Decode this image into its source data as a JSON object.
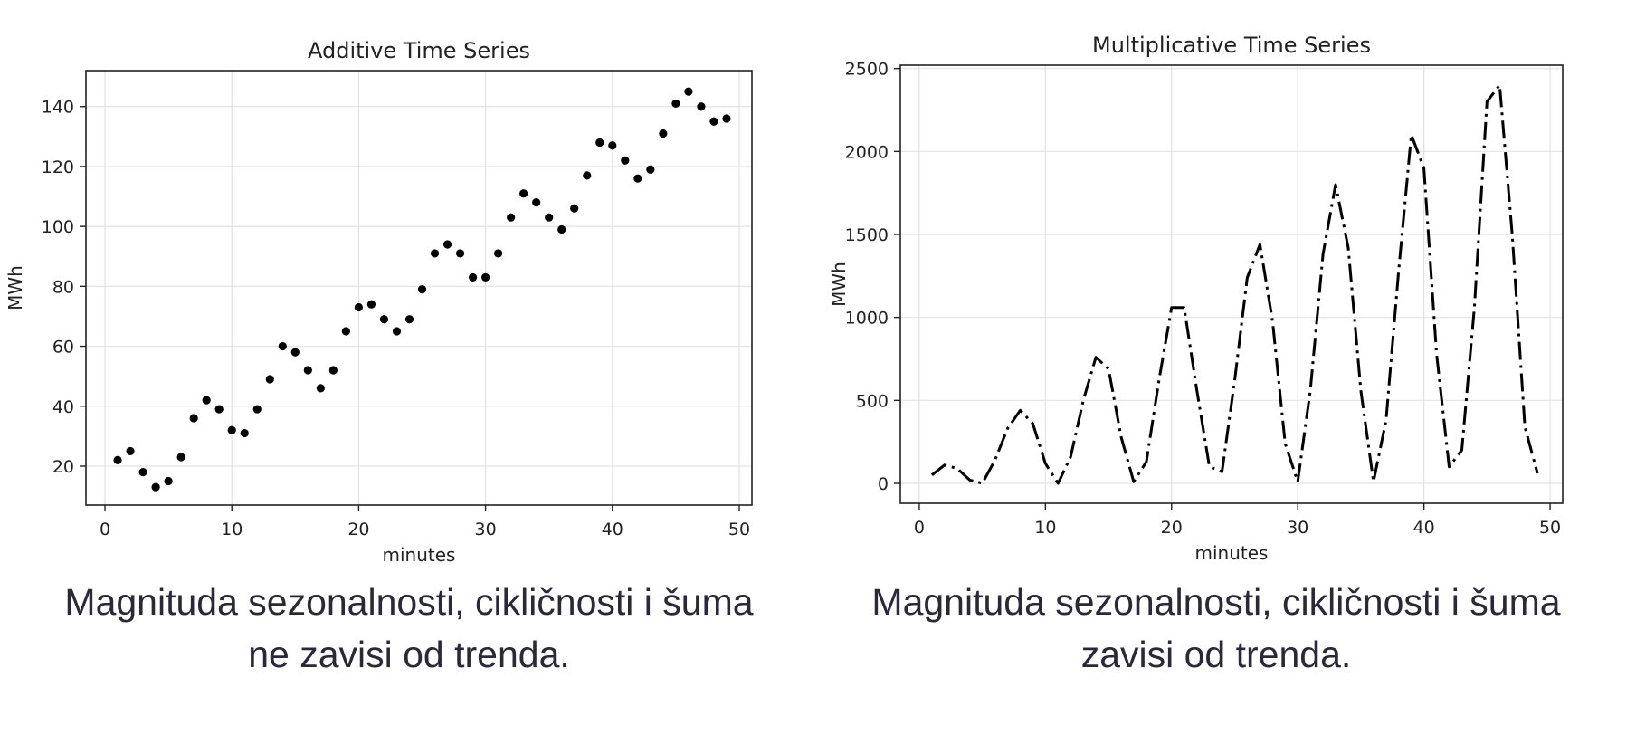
{
  "chart_data": [
    {
      "type": "scatter",
      "title": "Additive Time Series",
      "xlabel": "minutes",
      "ylabel": "MWh",
      "xlim": [
        -1.5,
        51
      ],
      "ylim": [
        7,
        152
      ],
      "xticks": [
        0,
        10,
        20,
        30,
        40,
        50
      ],
      "yticks": [
        20,
        40,
        60,
        80,
        100,
        120,
        140
      ],
      "grid": true,
      "marker_color": "#000000",
      "series": [
        {
          "x": [
            1,
            2,
            3,
            4,
            5,
            6,
            7,
            8,
            9,
            10,
            11,
            12,
            13,
            14,
            15,
            16,
            17,
            18,
            19,
            20,
            21,
            22,
            23,
            24,
            25,
            26,
            27,
            28,
            29,
            30,
            31,
            32,
            33,
            34,
            35,
            36,
            37,
            38,
            39,
            40,
            41,
            42,
            43,
            44,
            45,
            46,
            47,
            48,
            49
          ],
          "values": [
            22,
            25,
            18,
            13,
            15,
            23,
            36,
            42,
            39,
            32,
            31,
            39,
            49,
            60,
            58,
            52,
            46,
            52,
            65,
            73,
            74,
            69,
            65,
            69,
            79,
            91,
            94,
            91,
            83,
            83,
            91,
            103,
            111,
            108,
            103,
            99,
            106,
            117,
            128,
            127,
            122,
            116,
            119,
            131,
            141,
            145,
            140,
            135,
            136
          ]
        }
      ]
    },
    {
      "type": "line",
      "title": "Multiplicative Time Series",
      "xlabel": "minutes",
      "ylabel": "MWh",
      "xlim": [
        -1.5,
        51
      ],
      "ylim": [
        -120,
        2520
      ],
      "xticks": [
        0,
        10,
        20,
        30,
        40,
        50
      ],
      "yticks": [
        0,
        500,
        1000,
        1500,
        2000,
        2500
      ],
      "grid": true,
      "line_style": "dashdot",
      "line_color": "#000000",
      "series": [
        {
          "x": [
            1,
            2,
            3,
            4,
            5,
            6,
            7,
            8,
            9,
            10,
            11,
            12,
            13,
            14,
            15,
            16,
            17,
            18,
            19,
            20,
            21,
            22,
            23,
            24,
            25,
            26,
            27,
            28,
            29,
            30,
            31,
            32,
            33,
            34,
            35,
            36,
            37,
            38,
            39,
            40,
            41,
            42,
            43,
            44,
            45,
            46,
            47,
            48,
            49
          ],
          "values": [
            50,
            110,
            90,
            20,
            0,
            140,
            330,
            440,
            360,
            120,
            0,
            160,
            500,
            760,
            690,
            280,
            10,
            130,
            620,
            1060,
            1060,
            560,
            100,
            70,
            620,
            1240,
            1440,
            980,
            240,
            10,
            560,
            1380,
            1800,
            1420,
            560,
            10,
            380,
            1280,
            2100,
            1900,
            780,
            100,
            200,
            1060,
            2300,
            2400,
            1500,
            340,
            60
          ]
        }
      ]
    }
  ],
  "captions": {
    "left": [
      "Magnituda sezonalnosti, cikličnosti i šuma",
      "ne zavisi od trenda."
    ],
    "right": [
      "Magnituda sezonalnosti, cikličnosti i šuma",
      "zavisi od trenda."
    ]
  }
}
